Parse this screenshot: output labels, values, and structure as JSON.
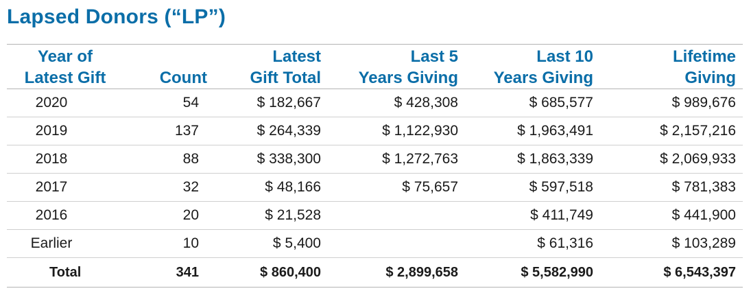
{
  "title": "Lapsed Donors (“LP”)",
  "headers": [
    {
      "line1": "Year of",
      "line2": "Latest Gift"
    },
    {
      "line1": "",
      "line2": "Count"
    },
    {
      "line1": "Latest",
      "line2": "Gift Total"
    },
    {
      "line1": "Last 5",
      "line2": "Years Giving"
    },
    {
      "line1": "Last 10",
      "line2": "Years Giving"
    },
    {
      "line1": "Lifetime",
      "line2": "Giving"
    }
  ],
  "rows": [
    [
      "2020",
      "54",
      "$ 182,667",
      "$ 428,308",
      "$ 685,577",
      "$ 989,676"
    ],
    [
      "2019",
      "137",
      "$ 264,339",
      "$ 1,122,930",
      "$ 1,963,491",
      "$ 2,157,216"
    ],
    [
      "2018",
      "88",
      "$ 338,300",
      "$ 1,272,763",
      "$ 1,863,339",
      "$ 2,069,933"
    ],
    [
      "2017",
      "32",
      "$ 48,166",
      "$ 75,657",
      "$ 597,518",
      "$ 781,383"
    ],
    [
      "2016",
      "20",
      "$ 21,528",
      "",
      "$ 411,749",
      "$ 441,900"
    ],
    [
      "Earlier",
      "10",
      "$ 5,400",
      "",
      "$ 61,316",
      "$ 103,289"
    ]
  ],
  "total": [
    "Total",
    "341",
    "$ 860,400",
    "$ 2,899,658",
    "$ 5,582,990",
    "$ 6,543,397"
  ],
  "colors": {
    "accent": "#0b6ea8",
    "rule": "#cfcfcf"
  }
}
